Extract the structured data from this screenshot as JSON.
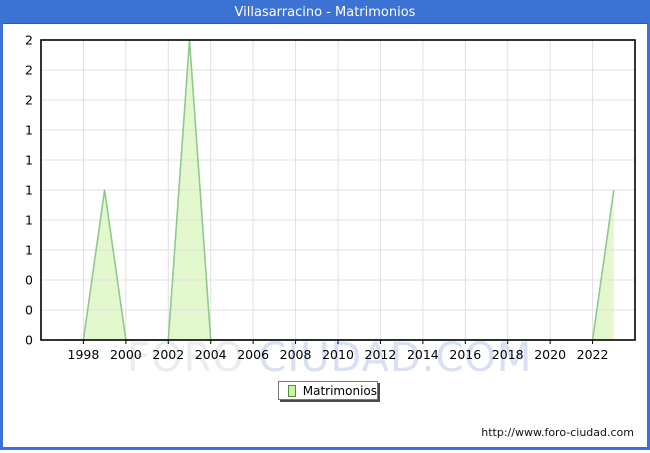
{
  "window": {
    "title": "Villasarracino - Matrimonios"
  },
  "chart_data": {
    "type": "area",
    "title": "Villasarracino - Matrimonios",
    "series_name": "Matrimonios",
    "x": [
      1997,
      1998,
      1999,
      2000,
      2001,
      2002,
      2003,
      2004,
      2005,
      2006,
      2007,
      2008,
      2009,
      2010,
      2011,
      2012,
      2013,
      2014,
      2015,
      2016,
      2017,
      2018,
      2019,
      2020,
      2021,
      2022,
      2023
    ],
    "values": [
      0,
      0,
      1,
      0,
      0,
      0,
      2,
      0,
      0,
      0,
      0,
      0,
      0,
      0,
      0,
      0,
      0,
      0,
      0,
      0,
      0,
      0,
      0,
      0,
      0,
      0,
      1
    ],
    "xlim": [
      1996,
      2024
    ],
    "ylim": [
      0,
      2
    ],
    "x_tick_labels": [
      "1998",
      "2000",
      "2002",
      "2004",
      "2006",
      "2008",
      "2010",
      "2012",
      "2014",
      "2016",
      "2018",
      "2020",
      "2022"
    ],
    "x_tick_years": [
      1998,
      2000,
      2002,
      2004,
      2006,
      2008,
      2010,
      2012,
      2014,
      2016,
      2018,
      2020,
      2022
    ],
    "y_tick_labels": [
      "2",
      "2",
      "2",
      "1",
      "1",
      "1",
      "1",
      "1",
      "0",
      "0",
      "0"
    ],
    "grid": true,
    "legend_position": "bottom-center"
  },
  "legend": {
    "label": "Matrimonios"
  },
  "watermark": {
    "part1": "FORO ",
    "part2": "CIUDAD.COM"
  },
  "footer": {
    "url": "http://www.foro-ciudad.com"
  },
  "colors": {
    "accent_blue": "#3B72D3",
    "area_fill": "#E4F8CE",
    "area_stroke": "#8FC98F",
    "legend_swatch": "#CCF29E",
    "legend_swatch_border": "#4E8F3C",
    "grid_line": "#E0E0E0",
    "plot_border": "#000000"
  }
}
